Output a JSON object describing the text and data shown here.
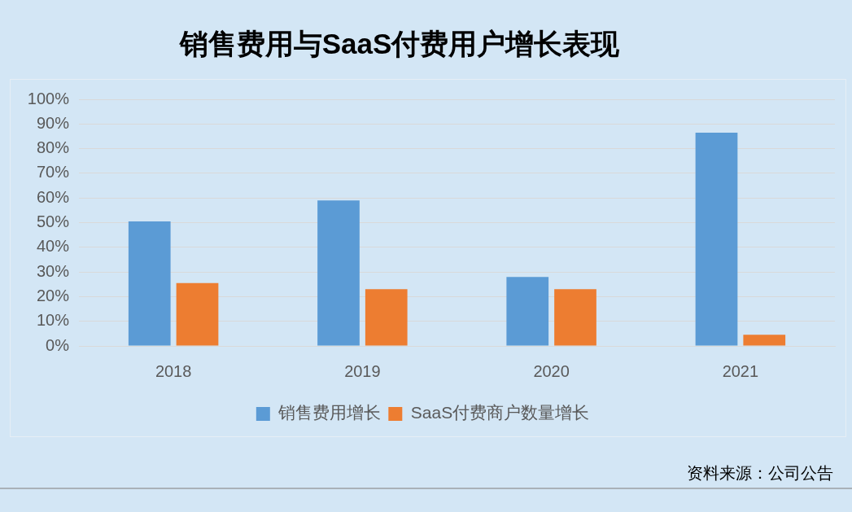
{
  "chart_data": {
    "type": "bar",
    "title": "销售费用与SaaS付费用户增长表现",
    "categories": [
      "2018",
      "2019",
      "2020",
      "2021"
    ],
    "series": [
      {
        "name": "销售费用增长",
        "color": "#5b9bd5",
        "values": [
          50.5,
          59,
          28,
          86.5
        ]
      },
      {
        "name": "SaaS付费商户数量增长",
        "color": "#ed7d31",
        "values": [
          25.5,
          23,
          23,
          4.5
        ]
      }
    ],
    "ylim": [
      0,
      100
    ],
    "yticks": [
      {
        "value": 0,
        "label": "0%"
      },
      {
        "value": 10,
        "label": "10%"
      },
      {
        "value": 20,
        "label": "20%"
      },
      {
        "value": 30,
        "label": "30%"
      },
      {
        "value": 40,
        "label": "40%"
      },
      {
        "value": 50,
        "label": "50%"
      },
      {
        "value": 60,
        "label": "60%"
      },
      {
        "value": 70,
        "label": "70%"
      },
      {
        "value": 80,
        "label": "80%"
      },
      {
        "value": 90,
        "label": "90%"
      },
      {
        "value": 100,
        "label": "100%"
      }
    ],
    "grid": "y",
    "legend": "bottom",
    "annotations": [
      "资料来源：公司公告"
    ]
  }
}
